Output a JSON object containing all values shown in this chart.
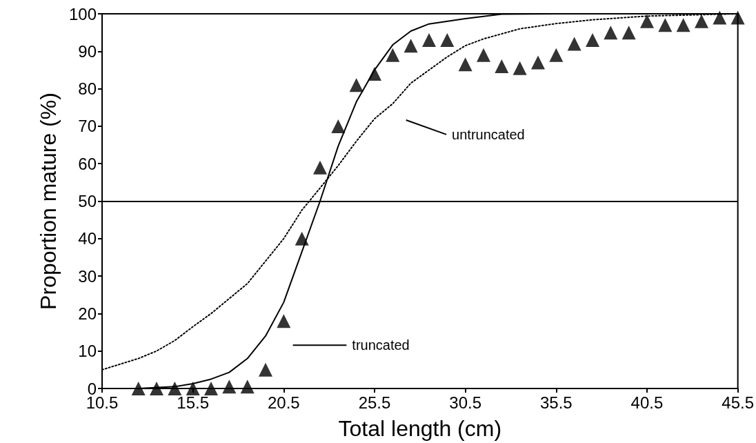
{
  "chart_data": {
    "type": "scatter",
    "xlabel": "Total length (cm)",
    "ylabel": "Proportion mature (%)",
    "xlim": [
      10.5,
      45.5
    ],
    "xticks": [
      10.5,
      15.5,
      20.5,
      25.5,
      30.5,
      35.5,
      40.5,
      45.5
    ],
    "ylim": [
      0,
      100
    ],
    "yticks": [
      0,
      10,
      20,
      30,
      40,
      50,
      60,
      70,
      80,
      90,
      100
    ],
    "grid": false,
    "series": [
      {
        "marker": "triangle",
        "color": "#000000",
        "x": [
          12.5,
          13.5,
          14.5,
          15.5,
          16.5,
          17.5,
          18.5,
          19.5,
          20.5,
          21.5,
          22.5,
          23.5,
          24.5,
          25.5,
          26.5,
          27.5,
          28.5,
          29.5,
          30.5,
          31.5,
          32.5,
          33.5,
          34.5,
          35.5,
          36.5,
          37.5,
          38.5,
          39.5,
          40.5,
          41.5,
          42.5,
          43.5,
          44.5,
          45.5
        ],
        "values": [
          0,
          0,
          0,
          0,
          0,
          0.5,
          0.5,
          5,
          18,
          40,
          59,
          70,
          81,
          84,
          89,
          91.5,
          93,
          93,
          86.5,
          89,
          86,
          85.5,
          87,
          89,
          92,
          93,
          95,
          95,
          98,
          97,
          97,
          98,
          99,
          99
        ]
      },
      {
        "type": "line",
        "marker": "none",
        "line_style": "solid",
        "color": "#000000",
        "x": [
          12.5,
          14.5,
          15.5,
          16.5,
          17.5,
          18.5,
          19.5,
          20.5,
          21.5,
          22.5,
          23.5,
          24.5,
          25.5,
          26.5,
          27.5,
          28.5,
          30.5,
          32.5,
          35.5,
          45.5
        ],
        "values": [
          0,
          0.5,
          1.3,
          2.5,
          4.3,
          8,
          14,
          23,
          36.5,
          50,
          64.7,
          76.5,
          85,
          91.7,
          95.4,
          97.3,
          98.7,
          99.9,
          100,
          100
        ]
      },
      {
        "type": "line",
        "marker": "none",
        "line_style": "dotted",
        "color": "#000000",
        "x": [
          10.5,
          12.5,
          13.5,
          14.5,
          15.5,
          16.5,
          17.5,
          18.5,
          19.5,
          20.5,
          21.5,
          22.5,
          23.5,
          24.5,
          25.5,
          26.5,
          27.5,
          29.5,
          30.5,
          31.5,
          33.5,
          35.5,
          37.5,
          40.5,
          45.5
        ],
        "values": [
          5,
          8,
          10,
          12.8,
          16.5,
          20,
          24,
          28,
          34,
          40,
          47.6,
          53.5,
          59.5,
          66,
          72,
          76,
          81.5,
          88.5,
          91.5,
          93.3,
          96,
          97.4,
          98.4,
          99.4,
          100
        ]
      }
    ],
    "ref_lines": [
      {
        "axis": "y",
        "value": 50,
        "color": "#000000",
        "line_style": "solid"
      }
    ],
    "annotations": [
      "untruncated",
      "truncated"
    ]
  }
}
